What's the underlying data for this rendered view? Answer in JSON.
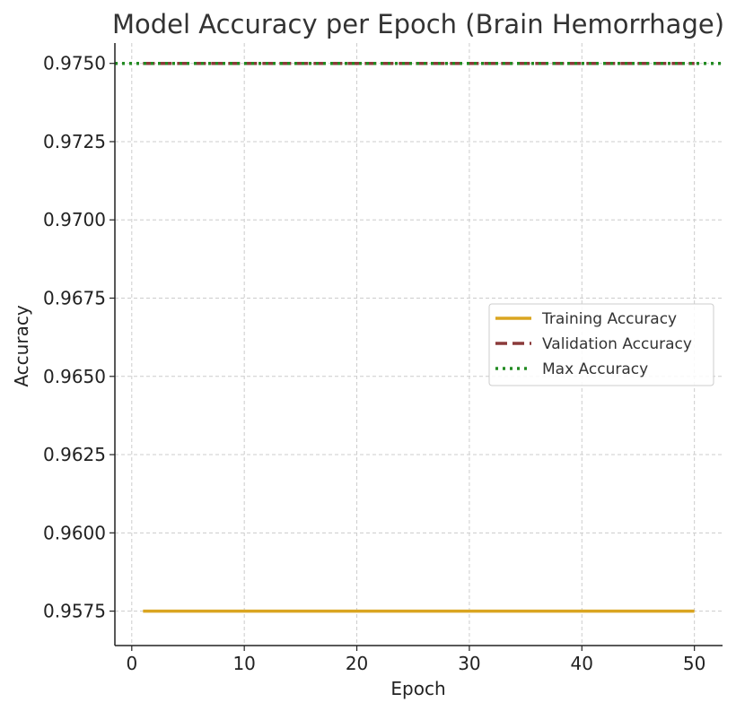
{
  "chart_data": {
    "type": "line",
    "title": "Model Accuracy per Epoch (Brain Hemorrhage)",
    "xlabel": "Epoch",
    "ylabel": "Accuracy",
    "xlim": [
      -1.5,
      52.5
    ],
    "ylim": [
      0.9564,
      0.97565
    ],
    "xticks": [
      0,
      10,
      20,
      30,
      40,
      50
    ],
    "xtick_labels": [
      "0",
      "10",
      "20",
      "30",
      "40",
      "50"
    ],
    "yticks": [
      0.9575,
      0.96,
      0.9625,
      0.965,
      0.9675,
      0.97,
      0.9725,
      0.975
    ],
    "ytick_labels": [
      "0.9575",
      "0.9600",
      "0.9625",
      "0.9650",
      "0.9675",
      "0.9700",
      "0.9725",
      "0.9750"
    ],
    "grid": true,
    "legend_position": "center-right",
    "series": [
      {
        "name": "Training Accuracy",
        "style": "solid",
        "color": "#DAA520",
        "x": [
          1,
          50
        ],
        "y": [
          0.9575,
          0.9575
        ]
      },
      {
        "name": "Validation Accuracy",
        "style": "dashed",
        "color": "#8B3A3A",
        "x": [
          1,
          50
        ],
        "y": [
          0.975,
          0.975
        ]
      },
      {
        "name": "Max Accuracy",
        "style": "dotted",
        "color": "#228B22",
        "type": "hline",
        "y": [
          0.975
        ]
      }
    ]
  }
}
